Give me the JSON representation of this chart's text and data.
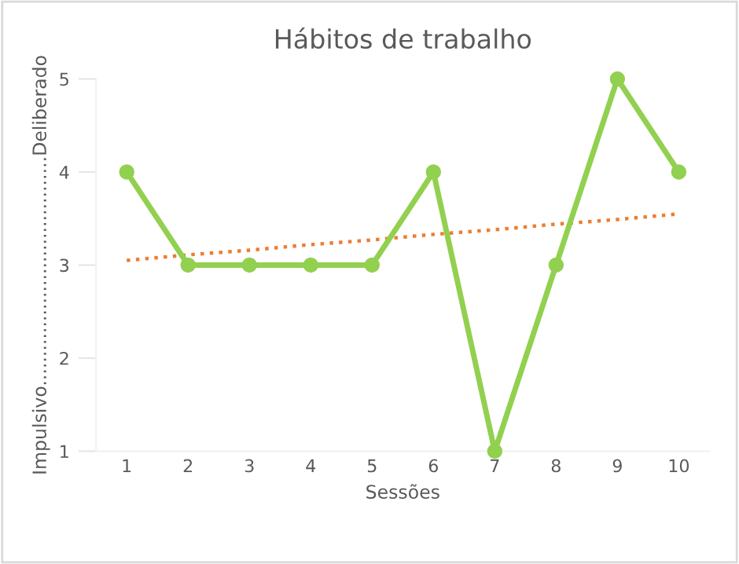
{
  "chart_data": {
    "type": "line",
    "title": "Hábitos de trabalho",
    "xlabel": "Sessões",
    "ylabel": "Impulsivo.......................................Deliberado",
    "categories": [
      "1",
      "2",
      "3",
      "4",
      "5",
      "6",
      "7",
      "8",
      "9",
      "10"
    ],
    "series": [
      {
        "color": "#92d050",
        "values": [
          4,
          3,
          3,
          3,
          3,
          4,
          1,
          3,
          5,
          4
        ],
        "marker": "circle",
        "line_style": "solid"
      },
      {
        "type": "line",
        "color": "#ed7d31",
        "values": [
          3.05,
          3.11,
          3.16,
          3.22,
          3.27,
          3.33,
          3.38,
          3.44,
          3.49,
          3.55
        ],
        "marker": "none",
        "line_style": "dotted"
      }
    ],
    "ylim": [
      1,
      5
    ],
    "yticks": [
      1,
      2,
      3,
      4,
      5
    ],
    "grid": false,
    "legend": false
  }
}
